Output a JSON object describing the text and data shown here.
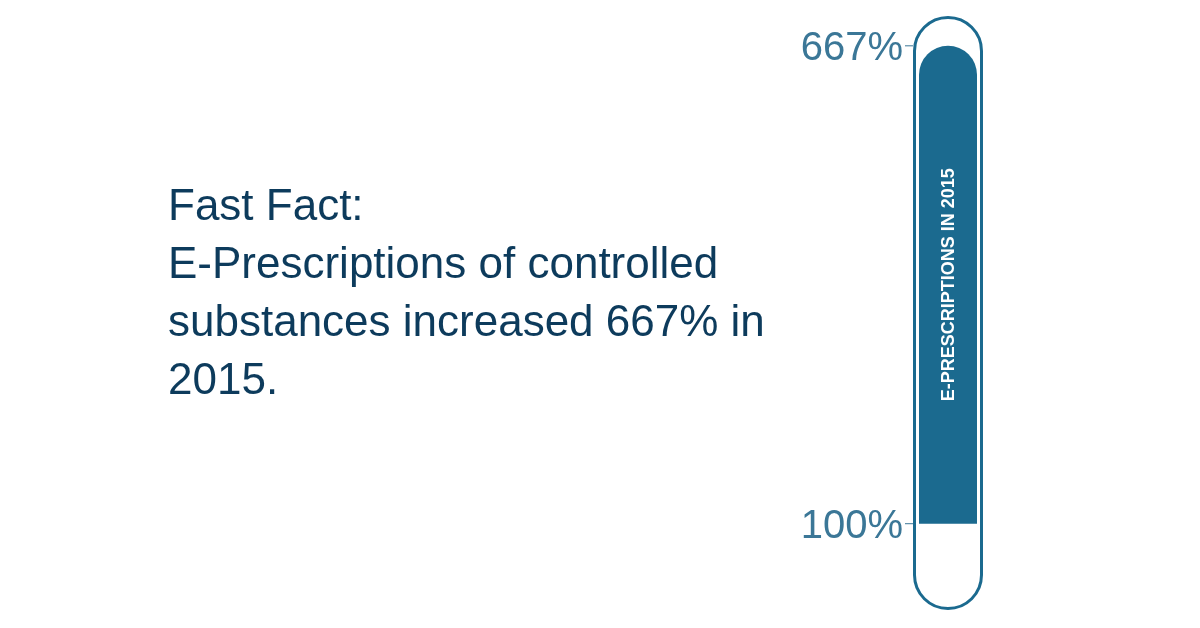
{
  "chart_data": {
    "type": "bar",
    "title": "Fast Fact:",
    "subtitle": "E-Prescriptions of controlled substances increased 667% in 2015.",
    "categories": [
      "E-PRESCRIPTIONS IN 2015"
    ],
    "base": [
      100
    ],
    "values": [
      567
    ],
    "color": "#1b6a8f",
    "ylim": [
      0,
      700
    ],
    "yticks": [
      {
        "value": 100,
        "label": "100%"
      },
      {
        "value": 667,
        "label": "667%"
      }
    ],
    "grid": false,
    "legend": false
  }
}
